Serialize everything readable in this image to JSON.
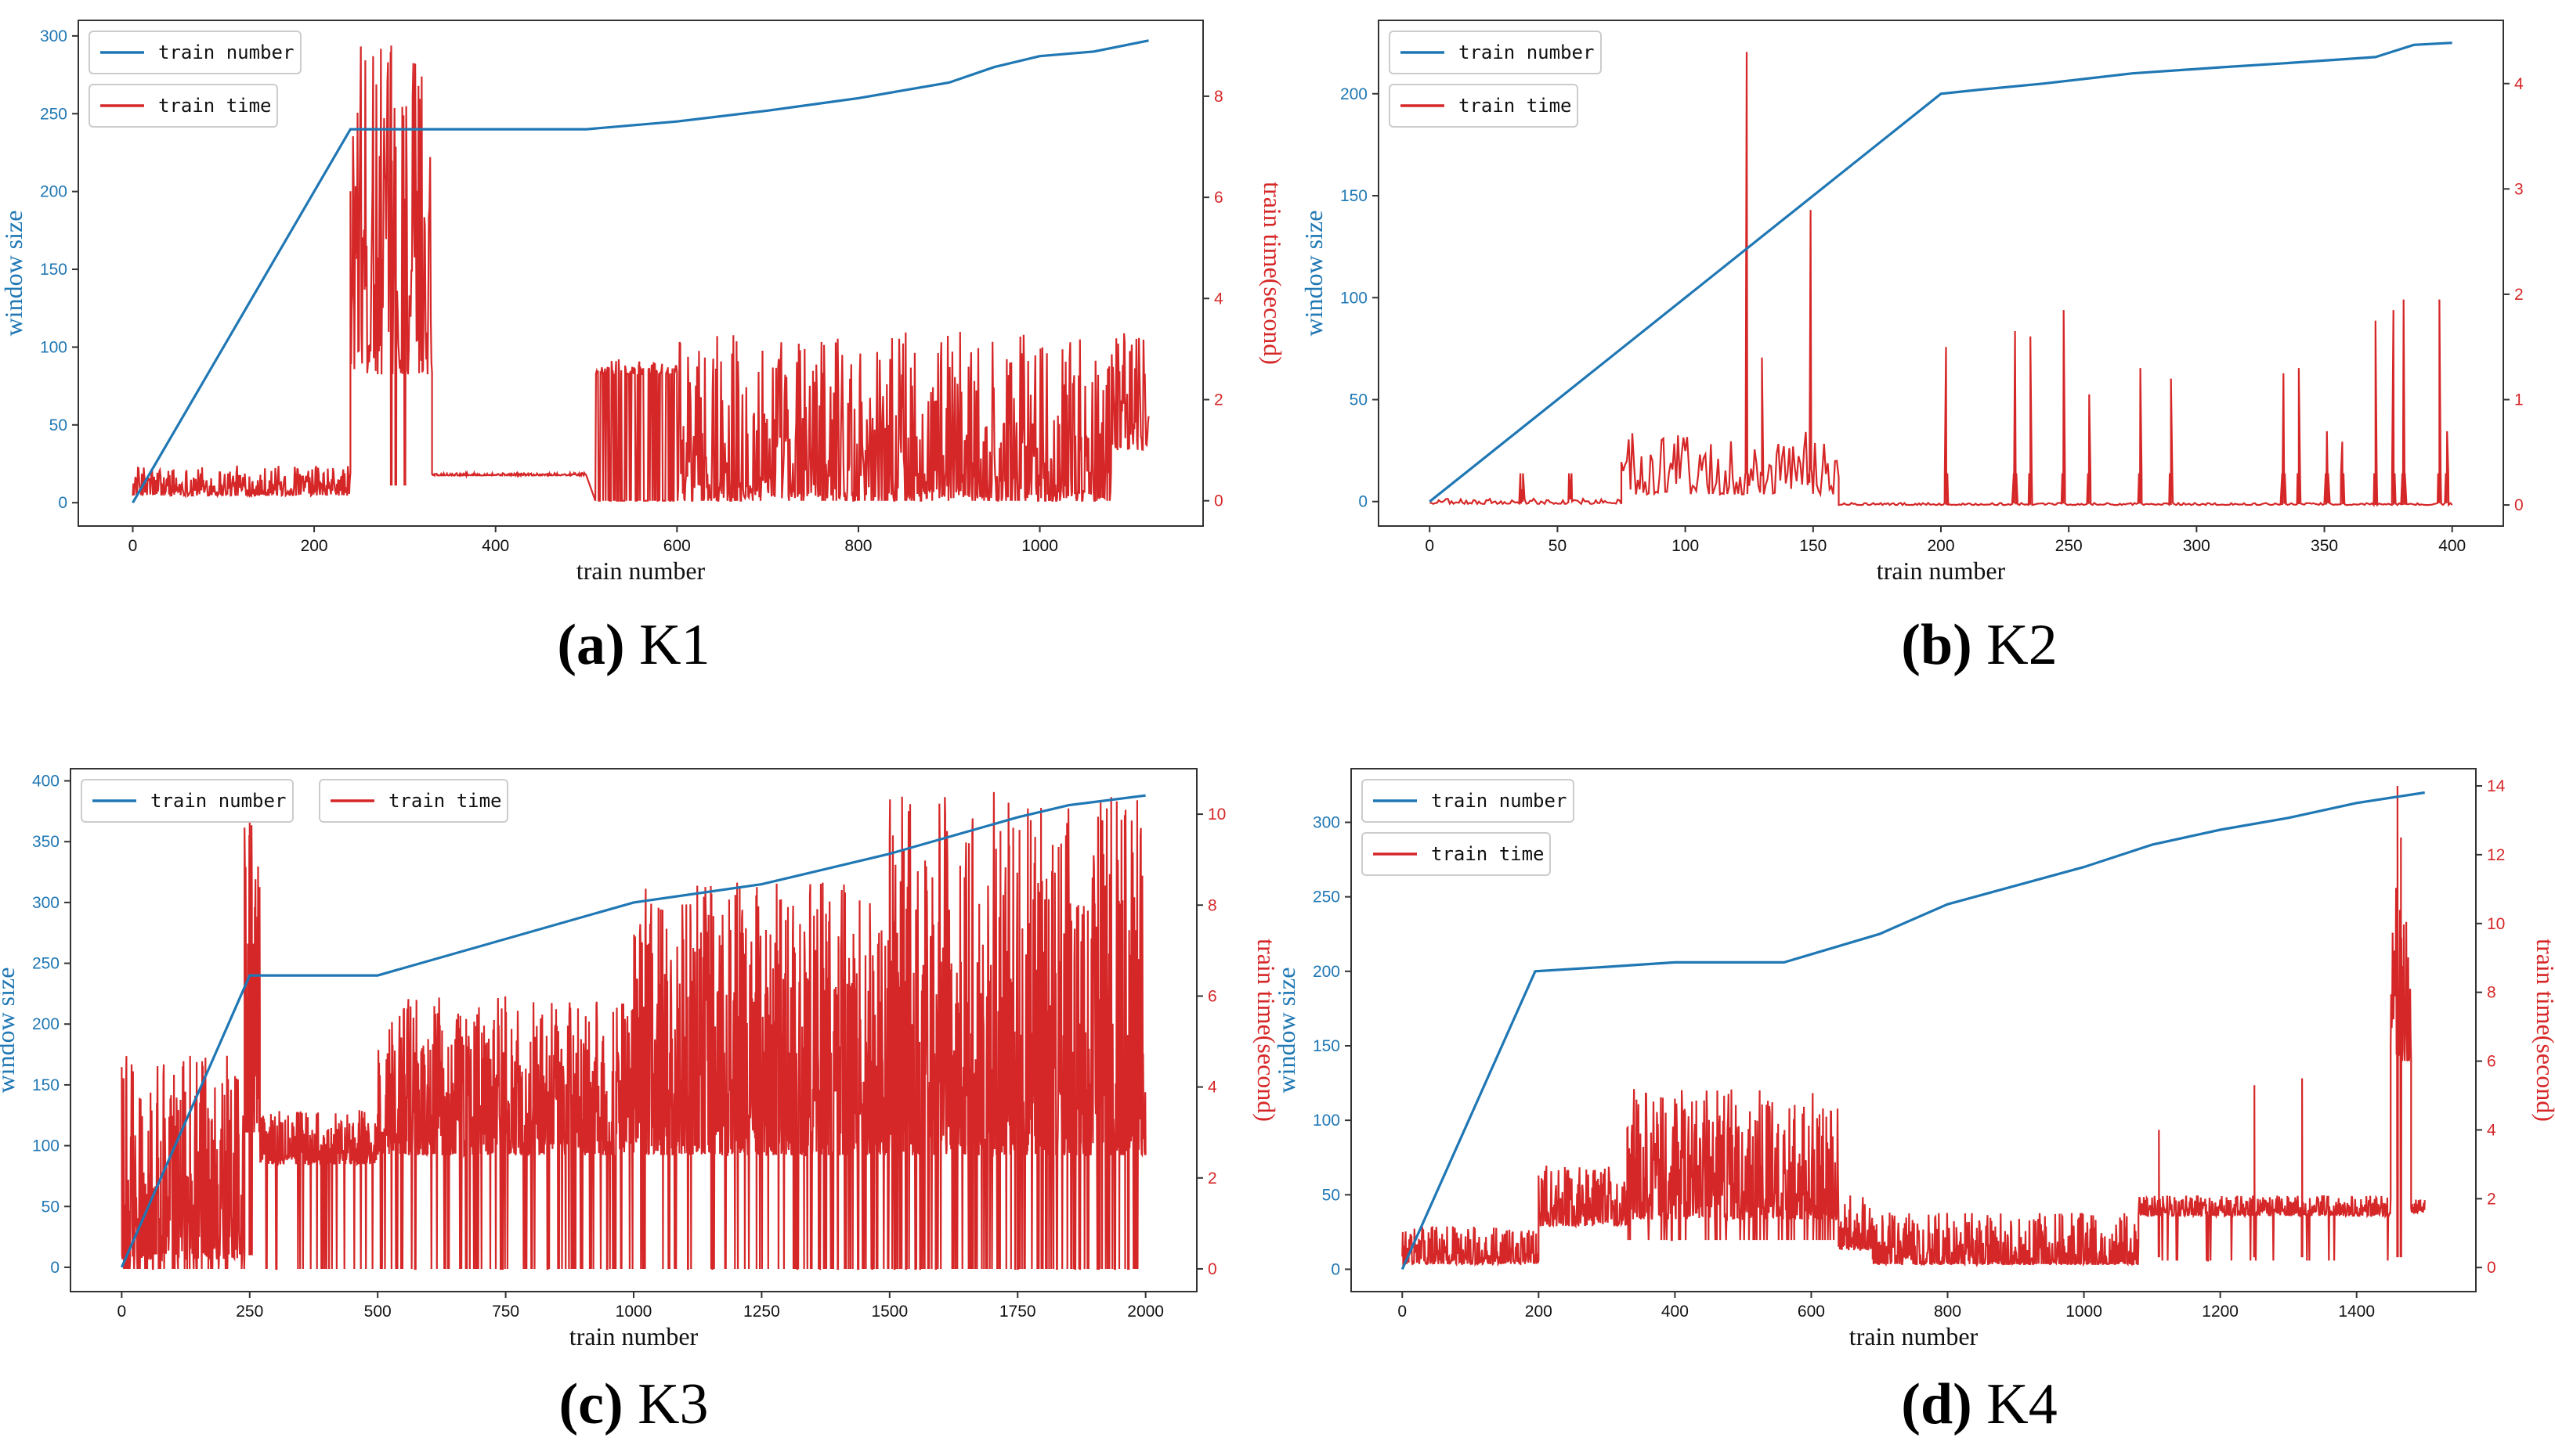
{
  "colors": {
    "number": "#1f77b4",
    "time": "#d62728",
    "axis": "#333333"
  },
  "captions": [
    {
      "letter": "(a)",
      "name": "K1"
    },
    {
      "letter": "(b)",
      "name": "K2"
    },
    {
      "letter": "(c)",
      "name": "K3"
    },
    {
      "letter": "(d)",
      "name": "K4"
    }
  ],
  "chart_data": [
    {
      "id": "K1",
      "type": "line",
      "xlabel": "train number",
      "ylabel_left": "window size",
      "ylabel_right": "train time(second)",
      "xlim": [
        -60,
        1180
      ],
      "ylim_left": [
        -15,
        310
      ],
      "ylim_right": [
        -0.5,
        9.5
      ],
      "xticks": [
        0,
        200,
        400,
        600,
        800,
        1000
      ],
      "yticks_left": [
        0,
        50,
        100,
        150,
        200,
        250,
        300
      ],
      "yticks_right": [
        0,
        2,
        4,
        6,
        8
      ],
      "legend": [
        "train number",
        "train time"
      ],
      "legend_layout": "stacked",
      "series": [
        {
          "name": "train number",
          "axis": "left",
          "x": [
            0,
            240,
            500,
            600,
            700,
            800,
            900,
            950,
            1000,
            1060,
            1120
          ],
          "y": [
            0,
            240,
            240,
            245,
            252,
            260,
            270,
            280,
            287,
            290,
            297
          ]
        },
        {
          "name": "train time",
          "axis": "right",
          "style": "noise",
          "segments": [
            {
              "from": 0,
              "to": 240,
              "base": 0.1,
              "amp": 0.6
            },
            {
              "from": 240,
              "to": 330,
              "base": 2.5,
              "amp": 6.5
            },
            {
              "from": 330,
              "to": 500,
              "base": 0.5,
              "amp": 0.05
            },
            {
              "from": 510,
              "to": 600,
              "base": 2.5,
              "amp": 0.3,
              "dropTo": 0,
              "dropRate": 0.5
            },
            {
              "from": 600,
              "to": 1080,
              "base": 0.05,
              "amp": 3.3,
              "dropTo": 0,
              "dropRate": 0.12
            },
            {
              "from": 1080,
              "to": 1120,
              "base": 1.0,
              "amp": 2.6
            }
          ],
          "peaks": [
            [
              285,
              9.0
            ],
            [
              290,
              7.0
            ],
            [
              300,
              3.5
            ]
          ]
        }
      ]
    },
    {
      "id": "K2",
      "type": "line",
      "xlabel": "train number",
      "ylabel_left": "window size",
      "ylabel_right": "train time(second)",
      "xlim": [
        -20,
        420
      ],
      "ylim_left": [
        -12,
        236
      ],
      "ylim_right": [
        -0.2,
        4.6
      ],
      "xticks": [
        0,
        50,
        100,
        150,
        200,
        250,
        300,
        350,
        400
      ],
      "yticks_left": [
        0,
        50,
        100,
        150,
        200
      ],
      "yticks_right": [
        0,
        1,
        2,
        3,
        4
      ],
      "legend": [
        "train number",
        "train time"
      ],
      "legend_layout": "stacked",
      "series": [
        {
          "name": "train number",
          "axis": "left",
          "x": [
            0,
            200,
            215,
            240,
            275,
            310,
            335,
            370,
            385,
            400
          ],
          "y": [
            0,
            200,
            202,
            205,
            210,
            213,
            215,
            218,
            224,
            225
          ]
        },
        {
          "name": "train time",
          "axis": "right",
          "style": "noise",
          "segments": [
            {
              "from": 0,
              "to": 75,
              "base": 0.01,
              "amp": 0.05
            },
            {
              "from": 75,
              "to": 160,
              "base": 0.1,
              "amp": 0.6
            },
            {
              "from": 160,
              "to": 400,
              "base": 0.0,
              "amp": 0.02
            }
          ],
          "peaks": [
            [
              36,
              0.15
            ],
            [
              55,
              0.1
            ],
            [
              124,
              4.3
            ],
            [
              130,
              1.4
            ],
            [
              149,
              2.8
            ],
            [
              202,
              1.5
            ],
            [
              229,
              1.65
            ],
            [
              235,
              1.6
            ],
            [
              248,
              1.85
            ],
            [
              258,
              1.05
            ],
            [
              278,
              1.3
            ],
            [
              290,
              1.2
            ],
            [
              334,
              1.25
            ],
            [
              340,
              1.3
            ],
            [
              351,
              0.7
            ],
            [
              357,
              0.6
            ],
            [
              370,
              1.75
            ],
            [
              377,
              1.85
            ],
            [
              381,
              1.95
            ],
            [
              395,
              1.95
            ],
            [
              398,
              0.7
            ]
          ]
        }
      ]
    },
    {
      "id": "K3",
      "type": "line",
      "xlabel": "train number",
      "ylabel_left": "window size",
      "ylabel_right": "train time(second)",
      "xlim": [
        -100,
        2100
      ],
      "ylim_left": [
        -20,
        410
      ],
      "ylim_right": [
        -0.5,
        11
      ],
      "xticks": [
        0,
        250,
        500,
        750,
        1000,
        1250,
        1500,
        1750,
        2000
      ],
      "yticks_left": [
        0,
        50,
        100,
        150,
        200,
        250,
        300,
        350,
        400
      ],
      "yticks_right": [
        0,
        2,
        4,
        6,
        8,
        10
      ],
      "legend": [
        "train number",
        "train time"
      ],
      "legend_layout": "inline",
      "series": [
        {
          "name": "train number",
          "axis": "left",
          "x": [
            0,
            250,
            500,
            750,
            1000,
            1250,
            1500,
            1750,
            1850,
            2000
          ],
          "y": [
            0,
            240,
            240,
            270,
            300,
            315,
            340,
            370,
            380,
            388
          ]
        },
        {
          "name": "train time",
          "axis": "right",
          "style": "noise",
          "segments": [
            {
              "from": 0,
              "to": 240,
              "base": 0.2,
              "amp": 4.5,
              "dropTo": 0,
              "dropRate": 0.1
            },
            {
              "from": 240,
              "to": 270,
              "base": 3.0,
              "amp": 7.0
            },
            {
              "from": 270,
              "to": 500,
              "base": 2.3,
              "amp": 1.2,
              "dropTo": 0,
              "dropRate": 0.08
            },
            {
              "from": 500,
              "to": 1000,
              "base": 2.5,
              "amp": 3.5,
              "dropTo": 0,
              "dropRate": 0.1
            },
            {
              "from": 1000,
              "to": 1500,
              "base": 2.5,
              "amp": 6.0,
              "dropTo": 0,
              "dropRate": 0.1
            },
            {
              "from": 1500,
              "to": 2000,
              "base": 2.5,
              "amp": 8.0,
              "dropTo": 0,
              "dropRate": 0.15
            }
          ],
          "peaks": [
            [
              250,
              10.0
            ],
            [
              254,
              9.0
            ]
          ]
        }
      ]
    },
    {
      "id": "K4",
      "type": "line",
      "xlabel": "train number",
      "ylabel_left": "window size",
      "ylabel_right": "train time(second)",
      "xlim": [
        -75,
        1575
      ],
      "ylim_left": [
        -15,
        336
      ],
      "ylim_right": [
        -0.7,
        14.5
      ],
      "xticks": [
        0,
        200,
        400,
        600,
        800,
        1000,
        1200,
        1400
      ],
      "yticks_left": [
        0,
        50,
        100,
        150,
        200,
        250,
        300
      ],
      "yticks_right": [
        0,
        2,
        4,
        6,
        8,
        10,
        12,
        14
      ],
      "legend": [
        "train number",
        "train time"
      ],
      "legend_layout": "stacked",
      "series": [
        {
          "name": "train number",
          "axis": "left",
          "x": [
            0,
            195,
            300,
            400,
            560,
            700,
            800,
            1000,
            1100,
            1200,
            1300,
            1400,
            1500
          ],
          "y": [
            0,
            200,
            203,
            206,
            206,
            225,
            245,
            270,
            285,
            295,
            303,
            313,
            320
          ]
        },
        {
          "name": "train time",
          "axis": "right",
          "style": "noise",
          "segments": [
            {
              "from": 0,
              "to": 200,
              "base": 0.1,
              "amp": 1.1
            },
            {
              "from": 200,
              "to": 330,
              "base": 1.2,
              "amp": 1.8
            },
            {
              "from": 330,
              "to": 640,
              "base": 1.4,
              "amp": 3.8,
              "dropTo": 0.8,
              "dropRate": 0.1
            },
            {
              "from": 640,
              "to": 690,
              "base": 0.5,
              "amp": 1.6
            },
            {
              "from": 690,
              "to": 1080,
              "base": 0.1,
              "amp": 1.5,
              "dropTo": 0.1,
              "dropRate": 0.25
            },
            {
              "from": 1080,
              "to": 1450,
              "base": 1.5,
              "amp": 0.6,
              "dropTo": 0.2,
              "dropRate": 0.03
            },
            {
              "from": 1450,
              "to": 1480,
              "base": 6.0,
              "amp": 6.0
            },
            {
              "from": 1480,
              "to": 1500,
              "base": 1.6,
              "amp": 0.4
            }
          ],
          "peaks": [
            [
              1110,
              4.0
            ],
            [
              1250,
              5.3
            ],
            [
              1320,
              5.5
            ],
            [
              1460,
              14.0
            ],
            [
              1465,
              12.5
            ]
          ]
        }
      ]
    }
  ]
}
